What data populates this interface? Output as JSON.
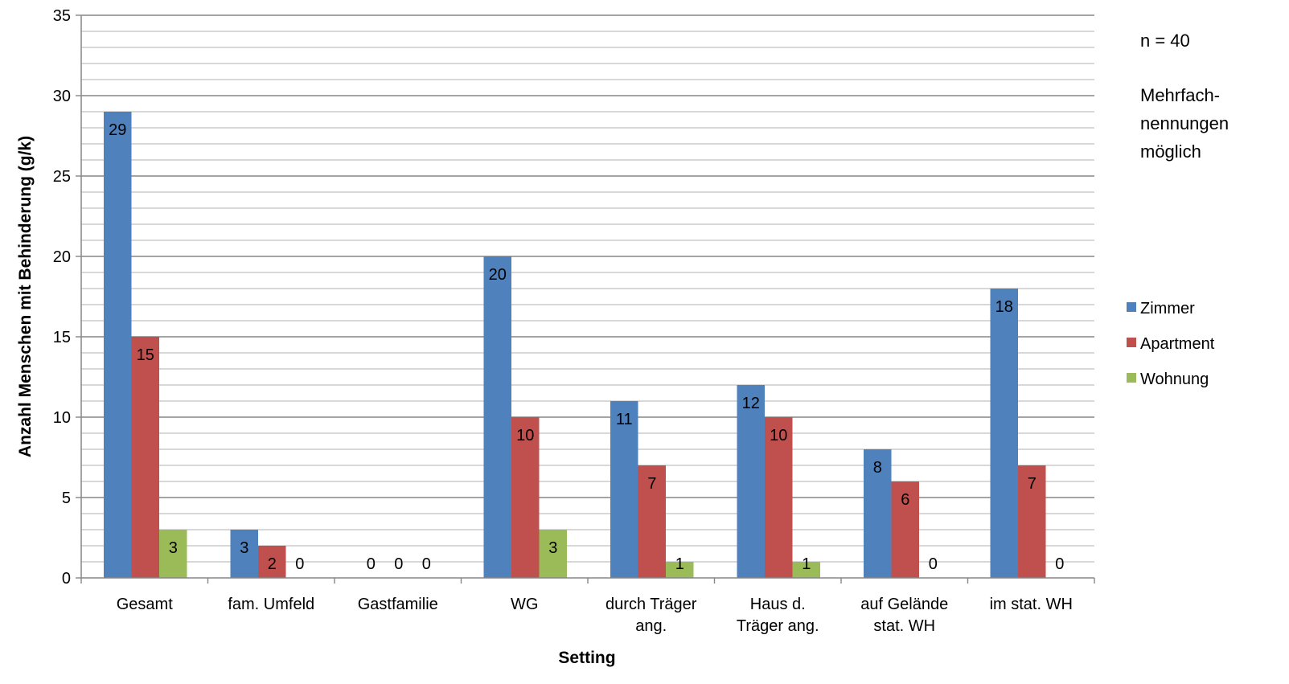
{
  "chart_data": {
    "type": "bar",
    "categories": [
      [
        "Gesamt"
      ],
      [
        "fam. Umfeld"
      ],
      [
        "Gastfamilie"
      ],
      [
        "WG"
      ],
      [
        "durch Träger",
        "ang."
      ],
      [
        "Haus d.",
        "Träger ang."
      ],
      [
        "auf Gelände",
        "stat. WH"
      ],
      [
        "im stat. WH"
      ]
    ],
    "series": [
      {
        "name": "Zimmer",
        "color": "#4F81BD",
        "values": [
          29,
          3,
          0,
          20,
          11,
          12,
          8,
          18
        ]
      },
      {
        "name": "Apartment",
        "color": "#C0504D",
        "values": [
          15,
          2,
          0,
          10,
          7,
          10,
          6,
          7
        ]
      },
      {
        "name": "Wohnung",
        "color": "#9BBB59",
        "values": [
          3,
          0,
          0,
          3,
          1,
          1,
          0,
          0
        ]
      }
    ],
    "data_labels": [
      [
        "29",
        "3",
        "0",
        "20",
        "11",
        "12",
        "8",
        "18"
      ],
      [
        "15",
        "2",
        "0",
        "10",
        "7",
        "10",
        "6",
        "7"
      ],
      [
        "3",
        "0",
        "0",
        "3",
        "1",
        "1",
        "0",
        "0"
      ]
    ],
    "xlabel": "Setting",
    "ylabel": "Anzahl Menschen mit Behinderung (g/k)",
    "ylim": [
      0,
      35
    ],
    "y_ticks": [
      "0",
      "5",
      "10",
      "15",
      "20",
      "25",
      "30",
      "35"
    ],
    "major_tick_step": 5,
    "minor_grid_step": 1,
    "grid": true,
    "legend_position": "right",
    "annotations": {
      "n": "n = 40",
      "note_lines": [
        "Mehrfach-",
        "nennungen",
        "möglich"
      ]
    }
  }
}
